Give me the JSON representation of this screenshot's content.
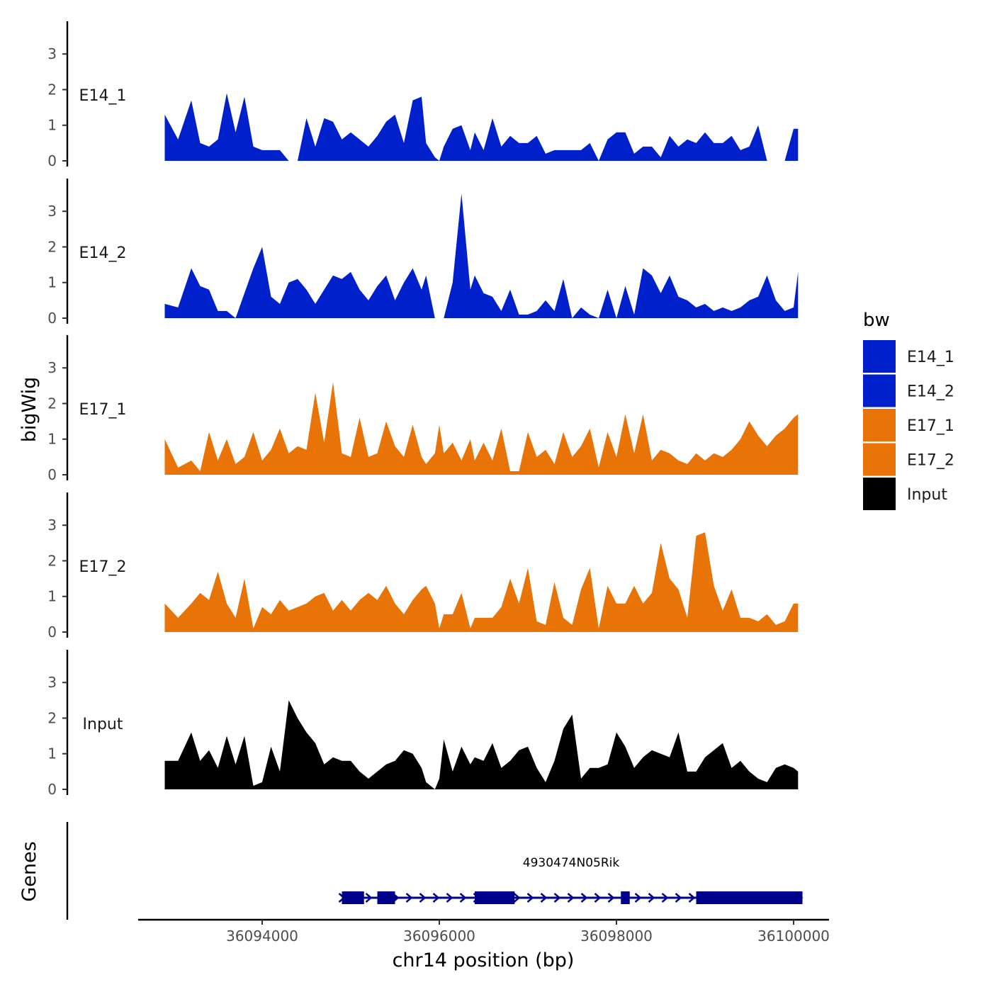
{
  "chart_data": {
    "type": "area",
    "ylabel": "bigWig",
    "xlabel": "chr14 position (bp)",
    "xlim": [
      36092600,
      36100400
    ],
    "ylim": [
      0,
      3.8
    ],
    "y_ticks": [
      0,
      1,
      2,
      3
    ],
    "x_ticks": [
      36094000,
      36096000,
      36098000,
      36100000
    ],
    "x_tick_labels": [
      "36094000",
      "36096000",
      "36098000",
      "36100000"
    ],
    "x": [
      36092900,
      36093050,
      36093200,
      36093300,
      36093400,
      36093500,
      36093600,
      36093700,
      36093800,
      36093900,
      36094000,
      36094100,
      36094200,
      36094300,
      36094400,
      36094500,
      36094600,
      36094700,
      36094800,
      36094900,
      36095000,
      36095100,
      36095200,
      36095300,
      36095400,
      36095500,
      36095600,
      36095700,
      36095800,
      36095850,
      36095950,
      36096000,
      36096050,
      36096150,
      36096250,
      36096350,
      36096400,
      36096500,
      36096600,
      36096700,
      36096800,
      36096900,
      36097000,
      36097100,
      36097200,
      36097300,
      36097400,
      36097500,
      36097600,
      36097700,
      36097800,
      36097900,
      36098000,
      36098100,
      36098200,
      36098300,
      36098400,
      36098500,
      36098600,
      36098700,
      36098800,
      36098900,
      36099000,
      36099100,
      36099200,
      36099300,
      36099400,
      36099500,
      36099600,
      36099700,
      36099800,
      36099900,
      36100000,
      36100050
    ],
    "series": [
      {
        "name": "E14_1",
        "color": "#0020CC",
        "values": [
          1.3,
          0.6,
          1.7,
          0.5,
          0.4,
          0.6,
          1.9,
          0.8,
          1.8,
          0.4,
          0.3,
          0.3,
          0.3,
          0,
          0,
          1.2,
          0.4,
          1.2,
          1.1,
          0.6,
          0.8,
          0.6,
          0.4,
          0.7,
          1.1,
          1.3,
          0.5,
          1.7,
          1.8,
          0.5,
          0.1,
          0,
          0.4,
          0.9,
          1,
          0.3,
          0.8,
          0.3,
          1.2,
          0.4,
          0.7,
          0.5,
          0.5,
          0.7,
          0.2,
          0.3,
          0.3,
          0.3,
          0.3,
          0.5,
          0,
          0.6,
          0.8,
          0.8,
          0.2,
          0.4,
          0.4,
          0.1,
          0.7,
          0.4,
          0.6,
          0.5,
          0.8,
          0.5,
          0.5,
          0.7,
          0.3,
          0.4,
          1,
          0,
          0,
          0,
          0.9,
          0.9
        ]
      },
      {
        "name": "E14_2",
        "color": "#0020CC",
        "values": [
          0.4,
          0.3,
          1.4,
          0.9,
          0.8,
          0.2,
          0.2,
          0,
          0.7,
          1.4,
          2,
          0.6,
          0.4,
          1,
          1.1,
          0.8,
          0.4,
          0.8,
          1.2,
          1.1,
          1.3,
          0.8,
          0.5,
          0.9,
          1.2,
          0.5,
          1,
          1.4,
          0.8,
          1.2,
          0,
          0,
          0,
          1,
          3.5,
          0.8,
          1.2,
          0.7,
          0.6,
          0.2,
          0.8,
          0.1,
          0.1,
          0.2,
          0.5,
          0.2,
          1.1,
          0,
          0.3,
          0.1,
          0,
          0.8,
          0,
          0.9,
          0.1,
          1.4,
          1.2,
          0.7,
          1.2,
          0.6,
          0.5,
          0.3,
          0.4,
          0.2,
          0.3,
          0.2,
          0.3,
          0.5,
          0.6,
          1.2,
          0.5,
          0.2,
          0.3,
          1.3
        ]
      },
      {
        "name": "E17_1",
        "color": "#E87306",
        "values": [
          1,
          0.2,
          0.4,
          0.1,
          1.2,
          0.4,
          1,
          0.3,
          0.5,
          1.2,
          0.4,
          0.7,
          1.3,
          0.6,
          0.8,
          0.7,
          2.3,
          0.9,
          2.6,
          0.6,
          0.5,
          1.6,
          0.5,
          0.6,
          1.5,
          0.8,
          0.5,
          1.4,
          0.5,
          0.3,
          0.6,
          1.4,
          0.6,
          0.9,
          0.4,
          1,
          0.4,
          0.9,
          0.4,
          1.3,
          0.1,
          0.1,
          1.2,
          0.5,
          0.7,
          0.3,
          1.2,
          0.5,
          0.8,
          1.3,
          0.2,
          1.2,
          0.5,
          1.7,
          0.6,
          1.7,
          0.4,
          0.7,
          0.6,
          0.4,
          0.3,
          0.6,
          0.4,
          0.6,
          0.5,
          0.7,
          1,
          1.5,
          1.1,
          0.8,
          1.1,
          1.3,
          1.6,
          1.7
        ]
      },
      {
        "name": "E17_2",
        "color": "#E87306",
        "values": [
          0.8,
          0.4,
          0.8,
          1.1,
          0.9,
          1.7,
          0.8,
          0.4,
          1.5,
          0.1,
          0.7,
          0.5,
          0.9,
          0.6,
          0.7,
          0.8,
          1,
          1.1,
          0.6,
          0.9,
          0.6,
          0.9,
          1.1,
          0.9,
          1.3,
          0.8,
          0.5,
          0.9,
          1.2,
          1.3,
          0.8,
          0.1,
          0.5,
          0.5,
          1.1,
          0.1,
          0.4,
          0.4,
          0.4,
          0.7,
          1.5,
          0.8,
          1.8,
          0.3,
          0.2,
          1.4,
          0.4,
          0.2,
          1.2,
          1.8,
          0.1,
          1.3,
          0.8,
          0.8,
          1.3,
          0.8,
          1.1,
          2.5,
          1.5,
          1.2,
          0.4,
          2.7,
          2.8,
          1.3,
          0.6,
          1.2,
          0.4,
          0.4,
          0.3,
          0.5,
          0.2,
          0.3,
          0.8,
          0.8
        ]
      },
      {
        "name": "Input",
        "color": "#000000",
        "values": [
          0.8,
          0.8,
          1.6,
          0.8,
          1.1,
          0.6,
          1.5,
          0.7,
          1.5,
          0.1,
          0.2,
          1.2,
          0.5,
          2.5,
          2,
          1.6,
          1.3,
          0.7,
          0.9,
          0.8,
          0.8,
          0.5,
          0.3,
          0.5,
          0.7,
          0.8,
          1.1,
          1,
          0.6,
          0.2,
          0,
          0.3,
          1.4,
          0.5,
          1.2,
          0.7,
          0.9,
          0.8,
          1.3,
          0.6,
          0.8,
          1.1,
          1.2,
          0.6,
          0.2,
          0.8,
          1.7,
          2.1,
          0.3,
          0.6,
          0.6,
          0.7,
          1.6,
          1.2,
          0.6,
          0.9,
          1.1,
          1,
          0.9,
          1.6,
          0.5,
          0.5,
          0.9,
          1.1,
          1.3,
          0.6,
          0.8,
          0.5,
          0.3,
          0.2,
          0.6,
          0.7,
          0.6,
          0.5
        ]
      }
    ],
    "gene": {
      "name": "4930474N05Rik",
      "strand": "+",
      "start": 36094900,
      "end": 36100100,
      "color": "#00008B",
      "exons": [
        [
          36094900,
          36095150
        ],
        [
          36095300,
          36095500
        ],
        [
          36096400,
          36096850
        ],
        [
          36098050,
          36098150
        ],
        [
          36098900,
          36100100
        ]
      ]
    },
    "gene_track_label": "Genes",
    "legend": {
      "title": "bw",
      "entries": [
        {
          "label": "E14_1",
          "color": "#0020CC"
        },
        {
          "label": "E14_2",
          "color": "#0020CC"
        },
        {
          "label": "E17_1",
          "color": "#E87306"
        },
        {
          "label": "E17_2",
          "color": "#E87306"
        },
        {
          "label": "Input",
          "color": "#000000"
        }
      ]
    }
  }
}
